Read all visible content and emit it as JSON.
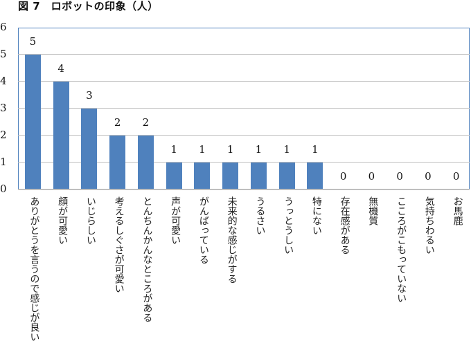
{
  "title": "図 7　ロボットの印象（人）",
  "chart_data": {
    "type": "bar",
    "title": "図 7　ロボットの印象（人）",
    "xlabel": "",
    "ylabel": "",
    "ylim": [
      0,
      6
    ],
    "yticks": [
      "0",
      "1",
      "2",
      "3",
      "4",
      "5",
      "6"
    ],
    "grid": true,
    "legend": null,
    "bar_color": "#4f81bd",
    "categories": [
      "ありがとうを言うので感じが良い",
      "顔が可愛い",
      "いじらしい",
      "考えるしぐさが可愛い",
      "とんちんかんなところがある",
      "声が可愛い",
      "がんばっている",
      "未来的な感じがする",
      "うるさい",
      "うっとうしい",
      "特にない",
      "存在感がある",
      "無機質",
      "こころがこもっていない",
      "気持ちわるい",
      "お馬鹿"
    ],
    "values": [
      5,
      4,
      3,
      2,
      2,
      1,
      1,
      1,
      1,
      1,
      1,
      0,
      0,
      0,
      0,
      0
    ],
    "value_labels": [
      "5",
      "4",
      "3",
      "2",
      "2",
      "1",
      "1",
      "1",
      "1",
      "1",
      "1",
      "0",
      "0",
      "0",
      "0",
      "0"
    ]
  }
}
